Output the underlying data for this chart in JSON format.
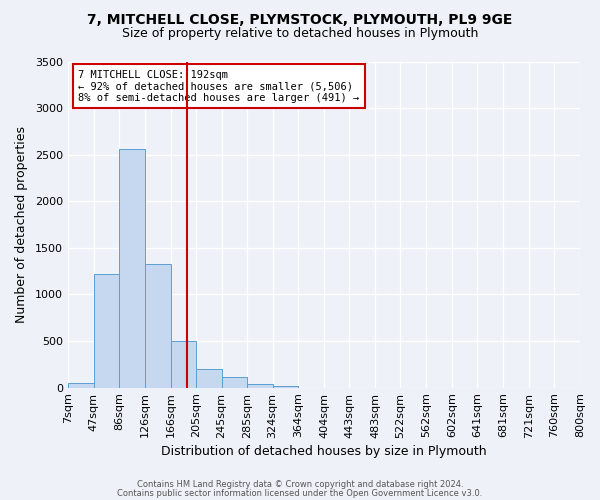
{
  "title1": "7, MITCHELL CLOSE, PLYMSTOCK, PLYMOUTH, PL9 9GE",
  "title2": "Size of property relative to detached houses in Plymouth",
  "xlabel": "Distribution of detached houses by size in Plymouth",
  "ylabel": "Number of detached properties",
  "bar_labels": [
    "7sqm",
    "47sqm",
    "86sqm",
    "126sqm",
    "166sqm",
    "205sqm",
    "245sqm",
    "285sqm",
    "324sqm",
    "364sqm",
    "404sqm",
    "443sqm",
    "483sqm",
    "522sqm",
    "562sqm",
    "602sqm",
    "641sqm",
    "681sqm",
    "721sqm",
    "760sqm",
    "800sqm"
  ],
  "bar_values": [
    50,
    1220,
    2560,
    1330,
    500,
    200,
    110,
    40,
    20,
    0,
    0,
    0,
    0,
    0,
    0,
    0,
    0,
    0,
    0,
    0
  ],
  "bar_color": "#c5d8f0",
  "bar_edge_color": "#5a9fd4",
  "property_line_x": 192,
  "property_line_label": "7 MITCHELL CLOSE: 192sqm",
  "annotation_line1": "← 92% of detached houses are smaller (5,506)",
  "annotation_line2": "8% of semi-detached houses are larger (491) →",
  "box_color": "#ffffff",
  "box_edge_color": "#cc0000",
  "line_color": "#cc0000",
  "ylim": [
    0,
    3500
  ],
  "yticks": [
    0,
    500,
    1000,
    1500,
    2000,
    2500,
    3000,
    3500
  ],
  "bin_edges": [
    7,
    47,
    86,
    126,
    166,
    205,
    245,
    285,
    324,
    364,
    404,
    443,
    483,
    522,
    562,
    602,
    641,
    681,
    721,
    760,
    800
  ],
  "footer1": "Contains HM Land Registry data © Crown copyright and database right 2024.",
  "footer2": "Contains public sector information licensed under the Open Government Licence v3.0.",
  "bg_color": "#eef2f8"
}
